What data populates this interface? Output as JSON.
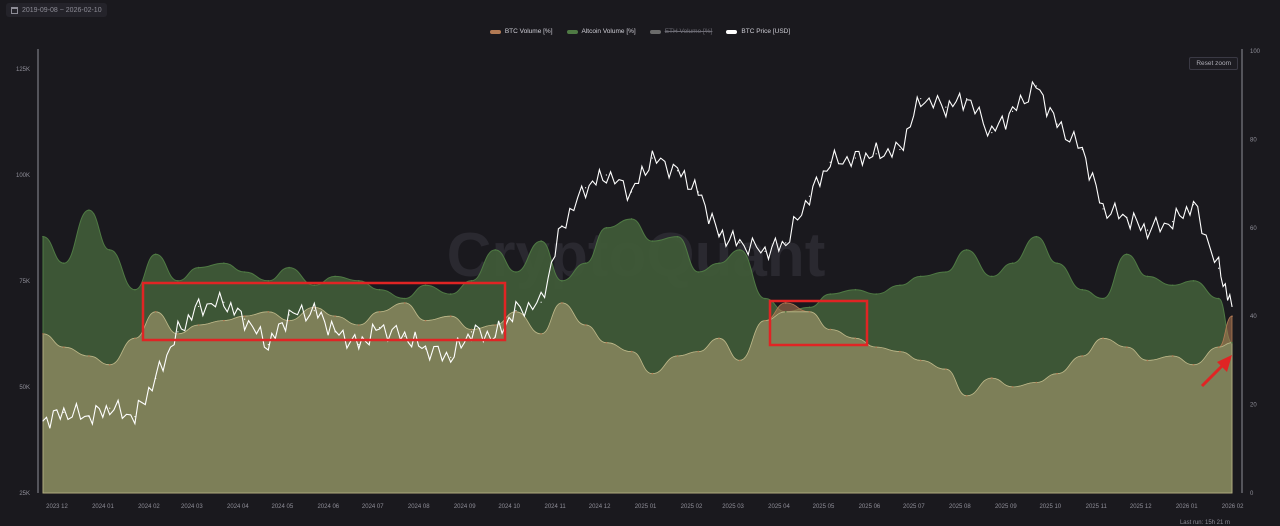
{
  "header": {
    "date_range": "2019-09-08 ~ 2026-02-10"
  },
  "toolbar": {
    "reset_zoom": "Reset zoom"
  },
  "footer": {
    "last_run": "Last run: 15h 21 m"
  },
  "watermark": "CryptoQuant",
  "colors": {
    "btc": "#b27a54",
    "alt": "#4f7a44",
    "eth": "#6b6b6b",
    "price": "#ffffff",
    "fill_low": "#7d7f58",
    "fill_green": "#3f5a38"
  },
  "chart_data": {
    "type": "area",
    "legend": [
      {
        "name": "BTC Volume [%]",
        "color": "#b27a54",
        "visible": true
      },
      {
        "name": "Altcoin Volume [%]",
        "color": "#4f7a44",
        "visible": true
      },
      {
        "name": "ETH Volume [%]",
        "color": "#6b6b6b",
        "visible": false
      },
      {
        "name": "BTC Price [USD]",
        "color": "#ffffff",
        "visible": true
      }
    ],
    "x_ticks": [
      "2023 12",
      "2024 01",
      "2024 02",
      "2024 03",
      "2024 04",
      "2024 05",
      "2024 06",
      "2024 07",
      "2024 08",
      "2024 09",
      "2024 10",
      "2024 11",
      "2024 12",
      "2025 01",
      "2025 02",
      "2025 03",
      "2025 04",
      "2025 05",
      "2025 06",
      "2025 07",
      "2025 08",
      "2025 09",
      "2025 10",
      "2025 11",
      "2025 12",
      "2026 01",
      "2026 02"
    ],
    "y_left_ticks": [
      "125K",
      "100K",
      "75K",
      "50K",
      "25K"
    ],
    "y_left_range": [
      25000,
      125000
    ],
    "y_right_ticks": [
      "100",
      "80",
      "60",
      "40",
      "20",
      "0"
    ],
    "y_right_range": [
      0,
      100
    ],
    "x": [
      "2023-12-01",
      "2023-12-15",
      "2024-01-01",
      "2024-01-15",
      "2024-02-01",
      "2024-02-15",
      "2024-03-01",
      "2024-03-15",
      "2024-04-01",
      "2024-04-15",
      "2024-05-01",
      "2024-05-15",
      "2024-06-01",
      "2024-06-15",
      "2024-07-01",
      "2024-07-15",
      "2024-08-01",
      "2024-08-15",
      "2024-09-01",
      "2024-09-15",
      "2024-10-01",
      "2024-10-15",
      "2024-11-01",
      "2024-11-15",
      "2024-12-01",
      "2024-12-15",
      "2025-01-01",
      "2025-01-15",
      "2025-02-01",
      "2025-02-15",
      "2025-03-01",
      "2025-03-15",
      "2025-04-01",
      "2025-04-15",
      "2025-05-01",
      "2025-05-15",
      "2025-06-01",
      "2025-06-15",
      "2025-07-01",
      "2025-07-15",
      "2025-08-01",
      "2025-08-15",
      "2025-09-01",
      "2025-09-15",
      "2025-10-01",
      "2025-10-15",
      "2025-11-01",
      "2025-11-15",
      "2025-12-01",
      "2025-12-15",
      "2026-01-01",
      "2026-01-15",
      "2026-02-01",
      "2026-02-10"
    ],
    "series": [
      {
        "name": "BTC Volume [%]",
        "axis": "right",
        "values": [
          36,
          33,
          31,
          29,
          35,
          41,
          36,
          38,
          39,
          40,
          41,
          39,
          42,
          40,
          38,
          41,
          43,
          39,
          40,
          37,
          38,
          41,
          36,
          43,
          38,
          34,
          32,
          27,
          31,
          32,
          35,
          30,
          39,
          43,
          41,
          37,
          35,
          33,
          32,
          30,
          28,
          22,
          26,
          24,
          25,
          27,
          31,
          35,
          33,
          30,
          31,
          29,
          33,
          40
        ]
      },
      {
        "name": "Altcoin Volume [%]",
        "axis": "right",
        "values": [
          58,
          52,
          64,
          55,
          46,
          54,
          48,
          51,
          52,
          50,
          48,
          51,
          47,
          49,
          48,
          46,
          44,
          47,
          45,
          48,
          55,
          50,
          57,
          48,
          52,
          60,
          62,
          57,
          58,
          50,
          52,
          55,
          44,
          41,
          42,
          45,
          46,
          45,
          47,
          49,
          50,
          55,
          49,
          52,
          58,
          52,
          46,
          44,
          54,
          49,
          47,
          48,
          44,
          34
        ]
      },
      {
        "name": "BTC Price [USD]",
        "axis": "left",
        "values": [
          42000,
          44000,
          43000,
          45000,
          43000,
          52000,
          63000,
          69000,
          70000,
          66000,
          60000,
          67000,
          68000,
          63000,
          60000,
          64000,
          62000,
          59000,
          57000,
          63000,
          62000,
          68000,
          70000,
          88000,
          97000,
          100000,
          96000,
          104000,
          101000,
          96000,
          86000,
          84000,
          82000,
          84000,
          95000,
          103000,
          104000,
          105000,
          106000,
          118000,
          116000,
          118000,
          110000,
          115000,
          121000,
          112000,
          106000,
          92000,
          90000,
          87000,
          89000,
          93000,
          78000,
          69000
        ]
      }
    ]
  }
}
